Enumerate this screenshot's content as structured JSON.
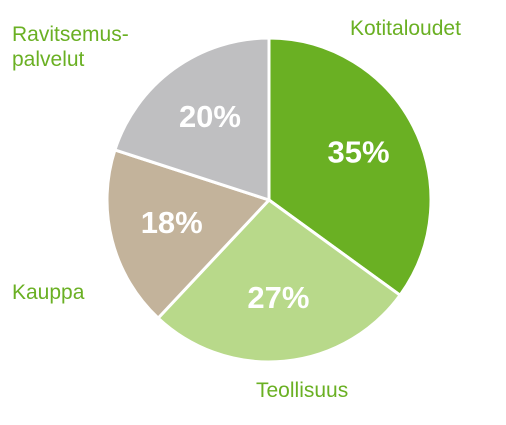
{
  "chart_data": {
    "type": "pie",
    "categories": [
      "Kotitaloudet",
      "Teollisuus",
      "Kauppa",
      "Ravitsemus-\npalvelut"
    ],
    "values": [
      35,
      27,
      18,
      20
    ],
    "value_labels": [
      "35%",
      "27%",
      "18%",
      "20%"
    ],
    "colors": [
      "#6ab023",
      "#b8d98a",
      "#c3b39b",
      "#bfbfc1"
    ]
  }
}
